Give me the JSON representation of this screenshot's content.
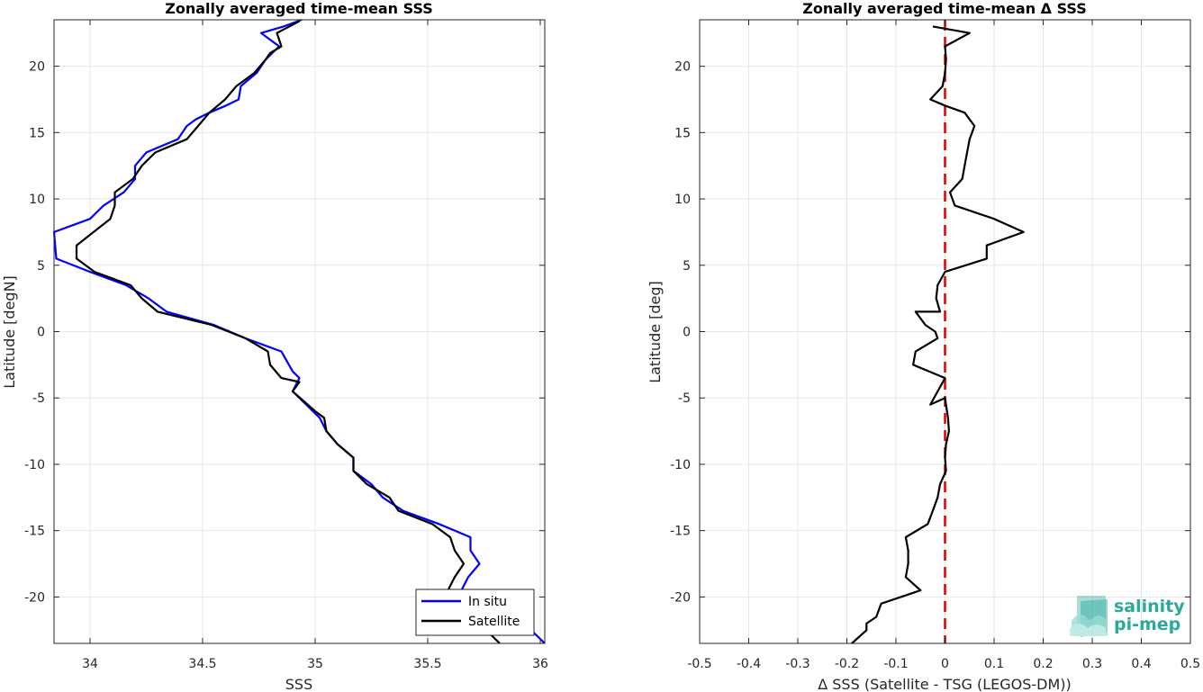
{
  "chart_data": [
    {
      "type": "line",
      "title": "Zonally averaged time-mean SSS",
      "xlabel": "SSS",
      "ylabel": "Latitude [degN]",
      "xlim": [
        33.84,
        36.02
      ],
      "ylim": [
        -23.5,
        23.5
      ],
      "xticks": [
        34,
        34.5,
        35,
        35.5,
        36
      ],
      "xtick_labels": [
        "34",
        "34.5",
        "35",
        "35.5",
        "36"
      ],
      "yticks": [
        -20,
        -15,
        -10,
        -5,
        0,
        5,
        10,
        15,
        20
      ],
      "ytick_labels": [
        "-20",
        "-15",
        "-10",
        "-5",
        "0",
        "5",
        "10",
        "15",
        "20"
      ],
      "grid": true,
      "legend_position": "bottom-right",
      "series": [
        {
          "name": "In situ",
          "color": "#0000ff",
          "points": [
            [
              34.94,
              23.5
            ],
            [
              34.86,
              23
            ],
            [
              34.76,
              22.5
            ],
            [
              34.84,
              21.5
            ],
            [
              34.78,
              20.5
            ],
            [
              34.74,
              19.5
            ],
            [
              34.67,
              18.5
            ],
            [
              34.66,
              17.5
            ],
            [
              34.6,
              17
            ],
            [
              34.53,
              16.5
            ],
            [
              34.47,
              16
            ],
            [
              34.43,
              15.5
            ],
            [
              34.39,
              14.5
            ],
            [
              34.25,
              13.5
            ],
            [
              34.2,
              12.5
            ],
            [
              34.2,
              11.5
            ],
            [
              34.15,
              10.5
            ],
            [
              34.06,
              9.5
            ],
            [
              34,
              8.5
            ],
            [
              33.84,
              7.5
            ],
            [
              33.85,
              5.5
            ],
            [
              34,
              4.5
            ],
            [
              34.16,
              3.5
            ],
            [
              34.26,
              2.5
            ],
            [
              34.34,
              1.5
            ],
            [
              34.55,
              0.5
            ],
            [
              34.69,
              -0.5
            ],
            [
              34.85,
              -1.5
            ],
            [
              34.9,
              -3
            ],
            [
              34.93,
              -3.5
            ],
            [
              34.9,
              -4.5
            ],
            [
              34.96,
              -5.5
            ],
            [
              35.02,
              -6.5
            ],
            [
              35.05,
              -7.5
            ],
            [
              35.1,
              -8.5
            ],
            [
              35.17,
              -9.5
            ],
            [
              35.17,
              -10.5
            ],
            [
              35.25,
              -11.5
            ],
            [
              35.3,
              -12.5
            ],
            [
              35.39,
              -13.5
            ],
            [
              35.55,
              -14.5
            ],
            [
              35.69,
              -15.5
            ],
            [
              35.69,
              -16.5
            ],
            [
              35.73,
              -17.5
            ],
            [
              35.68,
              -18.5
            ],
            [
              35.65,
              -19.5
            ],
            [
              35.7,
              -20.5
            ],
            [
              35.79,
              -21.5
            ],
            [
              35.96,
              -22.5
            ],
            [
              36.02,
              -23.5
            ]
          ]
        },
        {
          "name": "Satellite",
          "color": "#000000",
          "points": [
            [
              34.93,
              23.4
            ],
            [
              34.83,
              22.5
            ],
            [
              34.85,
              21.5
            ],
            [
              34.8,
              21
            ],
            [
              34.78,
              20.5
            ],
            [
              34.73,
              19.5
            ],
            [
              34.65,
              18.5
            ],
            [
              34.6,
              17.5
            ],
            [
              34.53,
              16.5
            ],
            [
              34.48,
              15.5
            ],
            [
              34.43,
              14.5
            ],
            [
              34.29,
              13.5
            ],
            [
              34.23,
              12.5
            ],
            [
              34.19,
              11.5
            ],
            [
              34.11,
              10.5
            ],
            [
              34.11,
              9.5
            ],
            [
              34.09,
              8.5
            ],
            [
              33.94,
              6.5
            ],
            [
              33.94,
              5.5
            ],
            [
              34.02,
              4.5
            ],
            [
              34.18,
              3.5
            ],
            [
              34.23,
              2.5
            ],
            [
              34.3,
              1.5
            ],
            [
              34.54,
              0.5
            ],
            [
              34.69,
              -0.5
            ],
            [
              34.79,
              -1.5
            ],
            [
              34.8,
              -2.5
            ],
            [
              34.85,
              -3.5
            ],
            [
              34.93,
              -3.8
            ],
            [
              34.9,
              -4.5
            ],
            [
              35,
              -6
            ],
            [
              35.04,
              -6.5
            ],
            [
              35.05,
              -7.5
            ],
            [
              35.1,
              -8.5
            ],
            [
              35.17,
              -9.5
            ],
            [
              35.17,
              -10.5
            ],
            [
              35.23,
              -11.5
            ],
            [
              35.33,
              -12.5
            ],
            [
              35.37,
              -13.5
            ],
            [
              35.52,
              -14.5
            ],
            [
              35.6,
              -15.5
            ],
            [
              35.62,
              -16.5
            ],
            [
              35.66,
              -17.5
            ],
            [
              35.62,
              -18.5
            ],
            [
              35.59,
              -19.5
            ],
            [
              35.65,
              -20.5
            ],
            [
              35.71,
              -21.5
            ],
            [
              35.76,
              -22.5
            ],
            [
              35.82,
              -23.5
            ]
          ]
        }
      ],
      "legend_entries": [
        "In situ",
        "Satellite"
      ]
    },
    {
      "type": "line",
      "title": "Zonally averaged time-mean Δ SSS",
      "xlabel": "Δ SSS (Satellite - TSG (LEGOS-DM))",
      "ylabel": "Latitude [deg]",
      "xlim": [
        -0.5,
        0.5
      ],
      "ylim": [
        -23.5,
        23.5
      ],
      "xticks": [
        -0.5,
        -0.4,
        -0.3,
        -0.2,
        -0.1,
        0,
        0.1,
        0.2,
        0.3,
        0.4,
        0.5
      ],
      "xtick_labels": [
        "-0.5",
        "-0.4",
        "-0.3",
        "-0.2",
        "-0.1",
        "0",
        "0.1",
        "0.2",
        "0.3",
        "0.4",
        "0.5"
      ],
      "yticks": [
        -20,
        -15,
        -10,
        -5,
        0,
        5,
        10,
        15,
        20
      ],
      "ytick_labels": [
        "-20",
        "-15",
        "-10",
        "-5",
        "0",
        "5",
        "10",
        "15",
        "20"
      ],
      "grid": true,
      "reference_line": {
        "x": 0,
        "color": "#dd0000",
        "style": "dashed"
      },
      "series": [
        {
          "color": "#000000",
          "points": [
            [
              -0.025,
              23
            ],
            [
              0.05,
              22.5
            ],
            [
              0,
              21.5
            ],
            [
              0.002,
              20.5
            ],
            [
              0,
              19.5
            ],
            [
              -0.005,
              18.5
            ],
            [
              -0.03,
              17.5
            ],
            [
              0.002,
              17
            ],
            [
              0.04,
              16.5
            ],
            [
              0.06,
              15.5
            ],
            [
              0.05,
              14.5
            ],
            [
              0.045,
              13.5
            ],
            [
              0.04,
              12.5
            ],
            [
              0.035,
              11.5
            ],
            [
              0.01,
              10.5
            ],
            [
              0.02,
              9.5
            ],
            [
              0.1,
              8.5
            ],
            [
              0.16,
              7.5
            ],
            [
              0.085,
              6.5
            ],
            [
              0.085,
              5.5
            ],
            [
              0,
              4.5
            ],
            [
              -0.015,
              3.5
            ],
            [
              -0.018,
              2.5
            ],
            [
              -0.01,
              1.5
            ],
            [
              -0.06,
              1.5
            ],
            [
              -0.04,
              0.5
            ],
            [
              -0.02,
              0
            ],
            [
              -0.015,
              -0.5
            ],
            [
              -0.06,
              -1.5
            ],
            [
              -0.065,
              -2.5
            ],
            [
              0,
              -3.5
            ],
            [
              -0.03,
              -5.5
            ],
            [
              0,
              -5
            ],
            [
              0.006,
              -6.5
            ],
            [
              0.008,
              -7.5
            ],
            [
              0.002,
              -8.5
            ],
            [
              0,
              -9.5
            ],
            [
              0.002,
              -10.5
            ],
            [
              -0.01,
              -11.5
            ],
            [
              -0.015,
              -12.5
            ],
            [
              -0.025,
              -13.5
            ],
            [
              -0.035,
              -14.5
            ],
            [
              -0.08,
              -15.5
            ],
            [
              -0.075,
              -16.5
            ],
            [
              -0.075,
              -17.5
            ],
            [
              -0.08,
              -18.5
            ],
            [
              -0.05,
              -19.5
            ],
            [
              -0.13,
              -20.5
            ],
            [
              -0.14,
              -21.5
            ],
            [
              -0.16,
              -22
            ],
            [
              -0.16,
              -22.5
            ],
            [
              -0.19,
              -23.5
            ]
          ]
        }
      ]
    }
  ],
  "logo": {
    "line1": "salinity",
    "line2": "pi-mep",
    "color": "#2aaa9a"
  }
}
